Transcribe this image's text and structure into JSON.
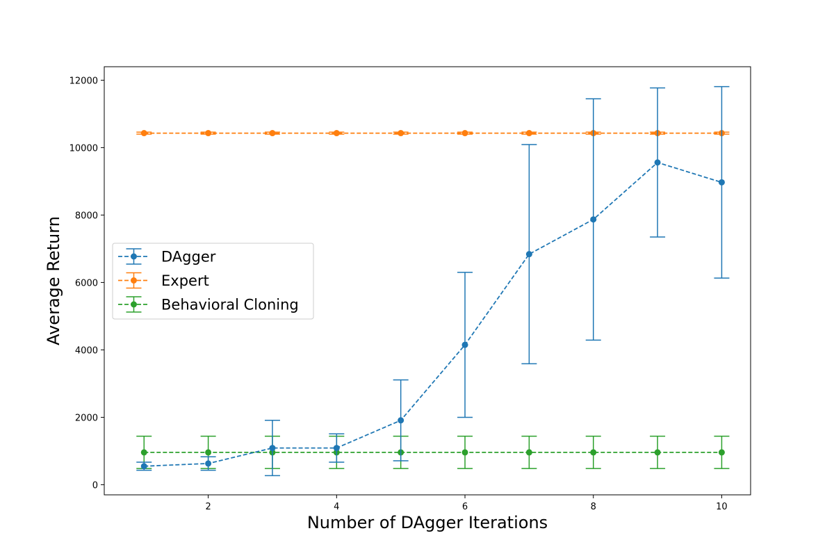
{
  "chart_data": {
    "type": "line",
    "title": "",
    "xlabel": "Number of DAgger Iterations",
    "ylabel": "Average Return",
    "xlim": [
      0.38,
      10.45
    ],
    "ylim": [
      -300,
      12400
    ],
    "xticks": [
      2,
      4,
      6,
      8,
      10
    ],
    "xtick_labels": [
      "2",
      "4",
      "6",
      "8",
      "10"
    ],
    "yticks": [
      0,
      2000,
      4000,
      6000,
      8000,
      10000,
      12000
    ],
    "ytick_labels": [
      "0",
      "2000",
      "4000",
      "6000",
      "8000",
      "10000",
      "12000"
    ],
    "grid": false,
    "legend_position": "center-left",
    "x": [
      1,
      2,
      3,
      4,
      5,
      6,
      7,
      8,
      9,
      10
    ],
    "series": [
      {
        "name": "DAgger",
        "color": "#1f77b4",
        "values": [
          550,
          630,
          1090,
          1090,
          1910,
          4150,
          6840,
          7870,
          9560,
          8970
        ],
        "errors": [
          120,
          200,
          820,
          420,
          1200,
          2150,
          3250,
          3580,
          2210,
          2840
        ]
      },
      {
        "name": "Expert",
        "color": "#ff7f0e",
        "values": [
          10430,
          10430,
          10430,
          10430,
          10430,
          10430,
          10430,
          10430,
          10430,
          10430
        ],
        "errors": [
          30,
          30,
          30,
          30,
          30,
          30,
          30,
          30,
          30,
          30
        ]
      },
      {
        "name": "Behavioral Cloning",
        "color": "#2ca02c",
        "values": [
          960,
          960,
          960,
          960,
          960,
          960,
          960,
          960,
          960,
          960
        ],
        "errors": [
          480,
          480,
          480,
          480,
          480,
          480,
          480,
          480,
          480,
          480
        ]
      }
    ]
  }
}
